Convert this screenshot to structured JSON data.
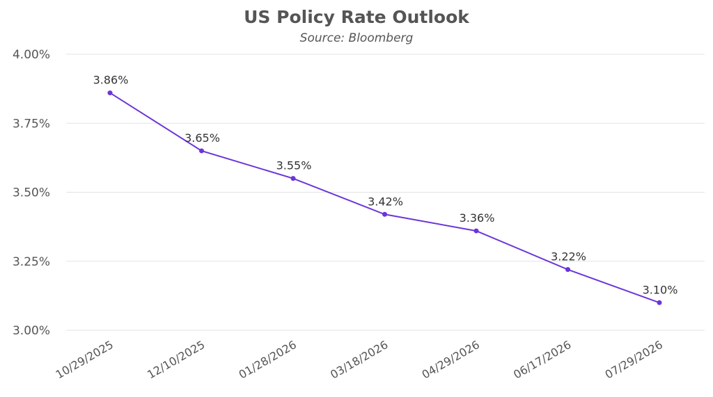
{
  "chart_data": {
    "type": "line",
    "title": "US Policy Rate Outlook",
    "subtitle": "Source: Bloomberg",
    "xlabel": "",
    "ylabel": "",
    "categories": [
      "10/29/2025",
      "12/10/2025",
      "01/28/2026",
      "03/18/2026",
      "04/29/2026",
      "06/17/2026",
      "07/29/2026"
    ],
    "series": [
      {
        "name": "US Policy Rate",
        "values": [
          3.86,
          3.65,
          3.55,
          3.42,
          3.36,
          3.22,
          3.1
        ],
        "labels": [
          "3.86%",
          "3.65%",
          "3.55%",
          "3.42%",
          "3.36%",
          "3.22%",
          "3.10%"
        ]
      }
    ],
    "ylim": [
      3.0,
      4.0
    ],
    "yticks": [
      4.0,
      3.75,
      3.5,
      3.25,
      3.0
    ],
    "ytick_labels": [
      "4.00%",
      "3.75%",
      "3.50%",
      "3.25%",
      "3.00%"
    ],
    "grid": true,
    "line_color": "#6a35d9"
  }
}
